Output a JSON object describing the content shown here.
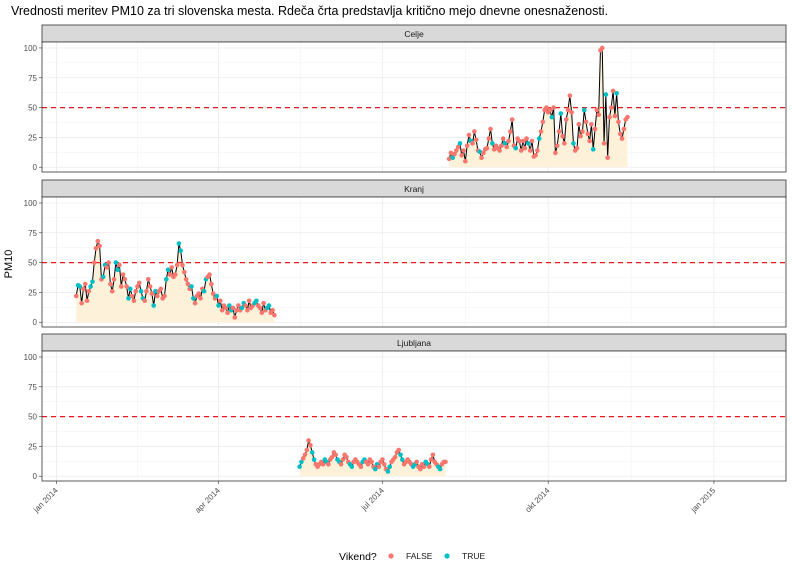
{
  "chart_data": {
    "type": "line",
    "title": "Vrednosti meritev PM10 za tri slovenska mesta. Rdeča črta predstavlja kritično mejo dnevne onesnaženosti.",
    "ylabel": "PM10",
    "xlabel": "",
    "ylim": [
      -4,
      105
    ],
    "y_ticks": [
      0,
      25,
      50,
      75,
      100
    ],
    "xlim": [
      "2013-12-24",
      "2015-02-10"
    ],
    "x_ticks": [
      {
        "date": "2014-01-01",
        "label": "jan 2014"
      },
      {
        "date": "2014-04-01",
        "label": "apr 2014"
      },
      {
        "date": "2014-07-01",
        "label": "jul 2014"
      },
      {
        "date": "2014-10-01",
        "label": "okt 2014"
      },
      {
        "date": "2015-01-01",
        "label": "jan 2015"
      }
    ],
    "threshold": 50,
    "threshold_color": "#e41a1c",
    "area_color": "#fdf1da",
    "line_color": "#000000",
    "grid": true,
    "legend": {
      "title": "Vikend?",
      "position": "bottom",
      "items": [
        {
          "label": "FALSE",
          "color": "#f8766d"
        },
        {
          "label": "TRUE",
          "color": "#00bfc4"
        }
      ]
    },
    "panels": [
      {
        "name": "Celje",
        "start": "2014-08-07",
        "values": [
          7,
          12,
          8,
          11,
          14,
          17,
          20,
          10,
          14,
          5,
          18,
          27,
          22,
          20,
          30,
          23,
          14,
          13,
          8,
          12,
          15,
          16,
          24,
          32,
          20,
          15,
          18,
          16,
          14,
          18,
          24,
          20,
          17,
          22,
          30,
          40,
          18,
          16,
          24,
          22,
          14,
          22,
          16,
          24,
          20,
          14,
          22,
          9,
          10,
          14,
          24,
          30,
          38,
          48,
          50,
          46,
          48,
          42,
          50,
          12,
          18,
          30,
          45,
          26,
          20,
          40,
          48,
          60,
          46,
          20,
          14,
          16,
          36,
          26,
          30,
          48,
          38,
          28,
          22,
          36,
          15,
          32,
          48,
          44,
          98,
          100,
          20,
          61,
          8,
          42,
          50,
          64,
          43,
          62,
          38,
          28,
          24,
          32,
          40,
          42
        ],
        "weekend": [
          0,
          0,
          1,
          0,
          0,
          0,
          1,
          0,
          0,
          0,
          0,
          0,
          1,
          0,
          0,
          0,
          0,
          1,
          0,
          0,
          0,
          0,
          0,
          0,
          1,
          0,
          0,
          0,
          0,
          0,
          0,
          1,
          0,
          0,
          0,
          0,
          0,
          1,
          0,
          0,
          0,
          0,
          0,
          0,
          1,
          0,
          0,
          0,
          0,
          0,
          1,
          0,
          0,
          0,
          0,
          0,
          0,
          1,
          0,
          0,
          0,
          0,
          1,
          0,
          0,
          0,
          0,
          0,
          0,
          1,
          0,
          0,
          0,
          0,
          0,
          1,
          0,
          0,
          0,
          0,
          1,
          0,
          0,
          0,
          0,
          0,
          0,
          1,
          0,
          0,
          0,
          0,
          0,
          1,
          0,
          0,
          0,
          0,
          0,
          0
        ]
      },
      {
        "name": "Kranj",
        "start": "2014-01-12",
        "values": [
          22,
          31,
          30,
          16,
          28,
          32,
          18,
          26,
          30,
          34,
          50,
          62,
          68,
          64,
          36,
          38,
          48,
          46,
          50,
          32,
          26,
          36,
          50,
          44,
          48,
          30,
          40,
          36,
          30,
          20,
          28,
          22,
          18,
          26,
          30,
          33,
          26,
          20,
          18,
          26,
          36,
          30,
          24,
          14,
          26,
          22,
          26,
          28,
          20,
          22,
          36,
          44,
          40,
          46,
          38,
          40,
          48,
          66,
          60,
          48,
          42,
          36,
          32,
          28,
          30,
          20,
          16,
          22,
          24,
          20,
          28,
          26,
          36,
          38,
          40,
          32,
          24,
          20,
          22,
          14,
          18,
          10,
          14,
          12,
          8,
          14,
          10,
          12,
          4,
          10,
          14,
          10,
          12,
          16,
          14,
          10,
          18,
          12,
          14,
          16,
          18,
          14,
          12,
          8,
          16,
          10,
          12,
          14,
          8,
          10,
          6
        ],
        "weekend": [
          0,
          1,
          1,
          0,
          0,
          0,
          0,
          0,
          1,
          1,
          0,
          0,
          0,
          0,
          0,
          1,
          1,
          0,
          0,
          0,
          0,
          0,
          1,
          1,
          0,
          0,
          0,
          0,
          0,
          1,
          1,
          0,
          0,
          0,
          0,
          0,
          1,
          1,
          0,
          0,
          0,
          0,
          0,
          1,
          1,
          0,
          0,
          0,
          0,
          0,
          1,
          1,
          0,
          0,
          0,
          0,
          0,
          1,
          1,
          0,
          0,
          0,
          0,
          0,
          1,
          1,
          0,
          0,
          0,
          0,
          0,
          1,
          1,
          0,
          0,
          0,
          0,
          0,
          1,
          1,
          0,
          0,
          0,
          0,
          0,
          1,
          1,
          0,
          0,
          0,
          0,
          0,
          1,
          1,
          0,
          0,
          0,
          0,
          0,
          1,
          1,
          0,
          0,
          0,
          0,
          0,
          1,
          1,
          0,
          0,
          0
        ]
      },
      {
        "name": "Ljubljana",
        "start": "2014-05-16",
        "values": [
          8,
          12,
          15,
          18,
          22,
          30,
          26,
          20,
          14,
          10,
          8,
          10,
          12,
          10,
          14,
          12,
          10,
          14,
          16,
          20,
          18,
          14,
          12,
          10,
          14,
          18,
          16,
          12,
          10,
          8,
          12,
          14,
          12,
          10,
          8,
          12,
          14,
          12,
          10,
          14,
          12,
          8,
          6,
          10,
          8,
          12,
          14,
          10,
          6,
          4,
          8,
          12,
          14,
          16,
          20,
          22,
          18,
          14,
          10,
          12,
          14,
          12,
          10,
          8,
          10,
          12,
          8,
          6,
          10,
          8,
          12,
          10,
          8,
          14,
          18,
          12,
          10,
          8,
          6,
          10,
          12,
          12
        ],
        "weekend": [
          1,
          1,
          0,
          0,
          0,
          0,
          0,
          1,
          1,
          0,
          0,
          0,
          0,
          0,
          1,
          1,
          0,
          0,
          0,
          0,
          0,
          1,
          1,
          0,
          0,
          0,
          0,
          0,
          1,
          1,
          0,
          0,
          0,
          0,
          0,
          1,
          1,
          0,
          0,
          0,
          0,
          0,
          1,
          1,
          0,
          0,
          0,
          0,
          0,
          1,
          1,
          0,
          0,
          0,
          0,
          0,
          1,
          1,
          0,
          0,
          0,
          0,
          0,
          1,
          1,
          0,
          0,
          0,
          0,
          0,
          1,
          1,
          0,
          0,
          0,
          0,
          0,
          1,
          1,
          0,
          0,
          0
        ]
      }
    ]
  }
}
